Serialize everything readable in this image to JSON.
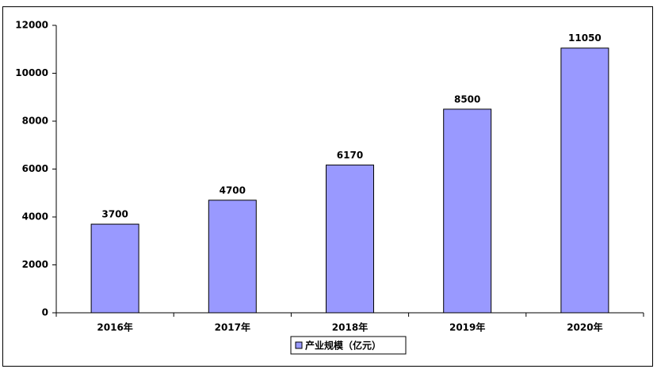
{
  "chart_data": {
    "type": "bar",
    "categories": [
      "2016年",
      "2017年",
      "2018年",
      "2019年",
      "2020年"
    ],
    "series": [
      {
        "name": "产业规模（亿元）",
        "color": "#9999ff",
        "values": [
          3700,
          4700,
          6170,
          8500,
          11050
        ]
      }
    ],
    "ylim": [
      0,
      12000
    ],
    "yticks": [
      0,
      2000,
      4000,
      6000,
      8000,
      10000,
      12000
    ],
    "legend": "bottom"
  }
}
